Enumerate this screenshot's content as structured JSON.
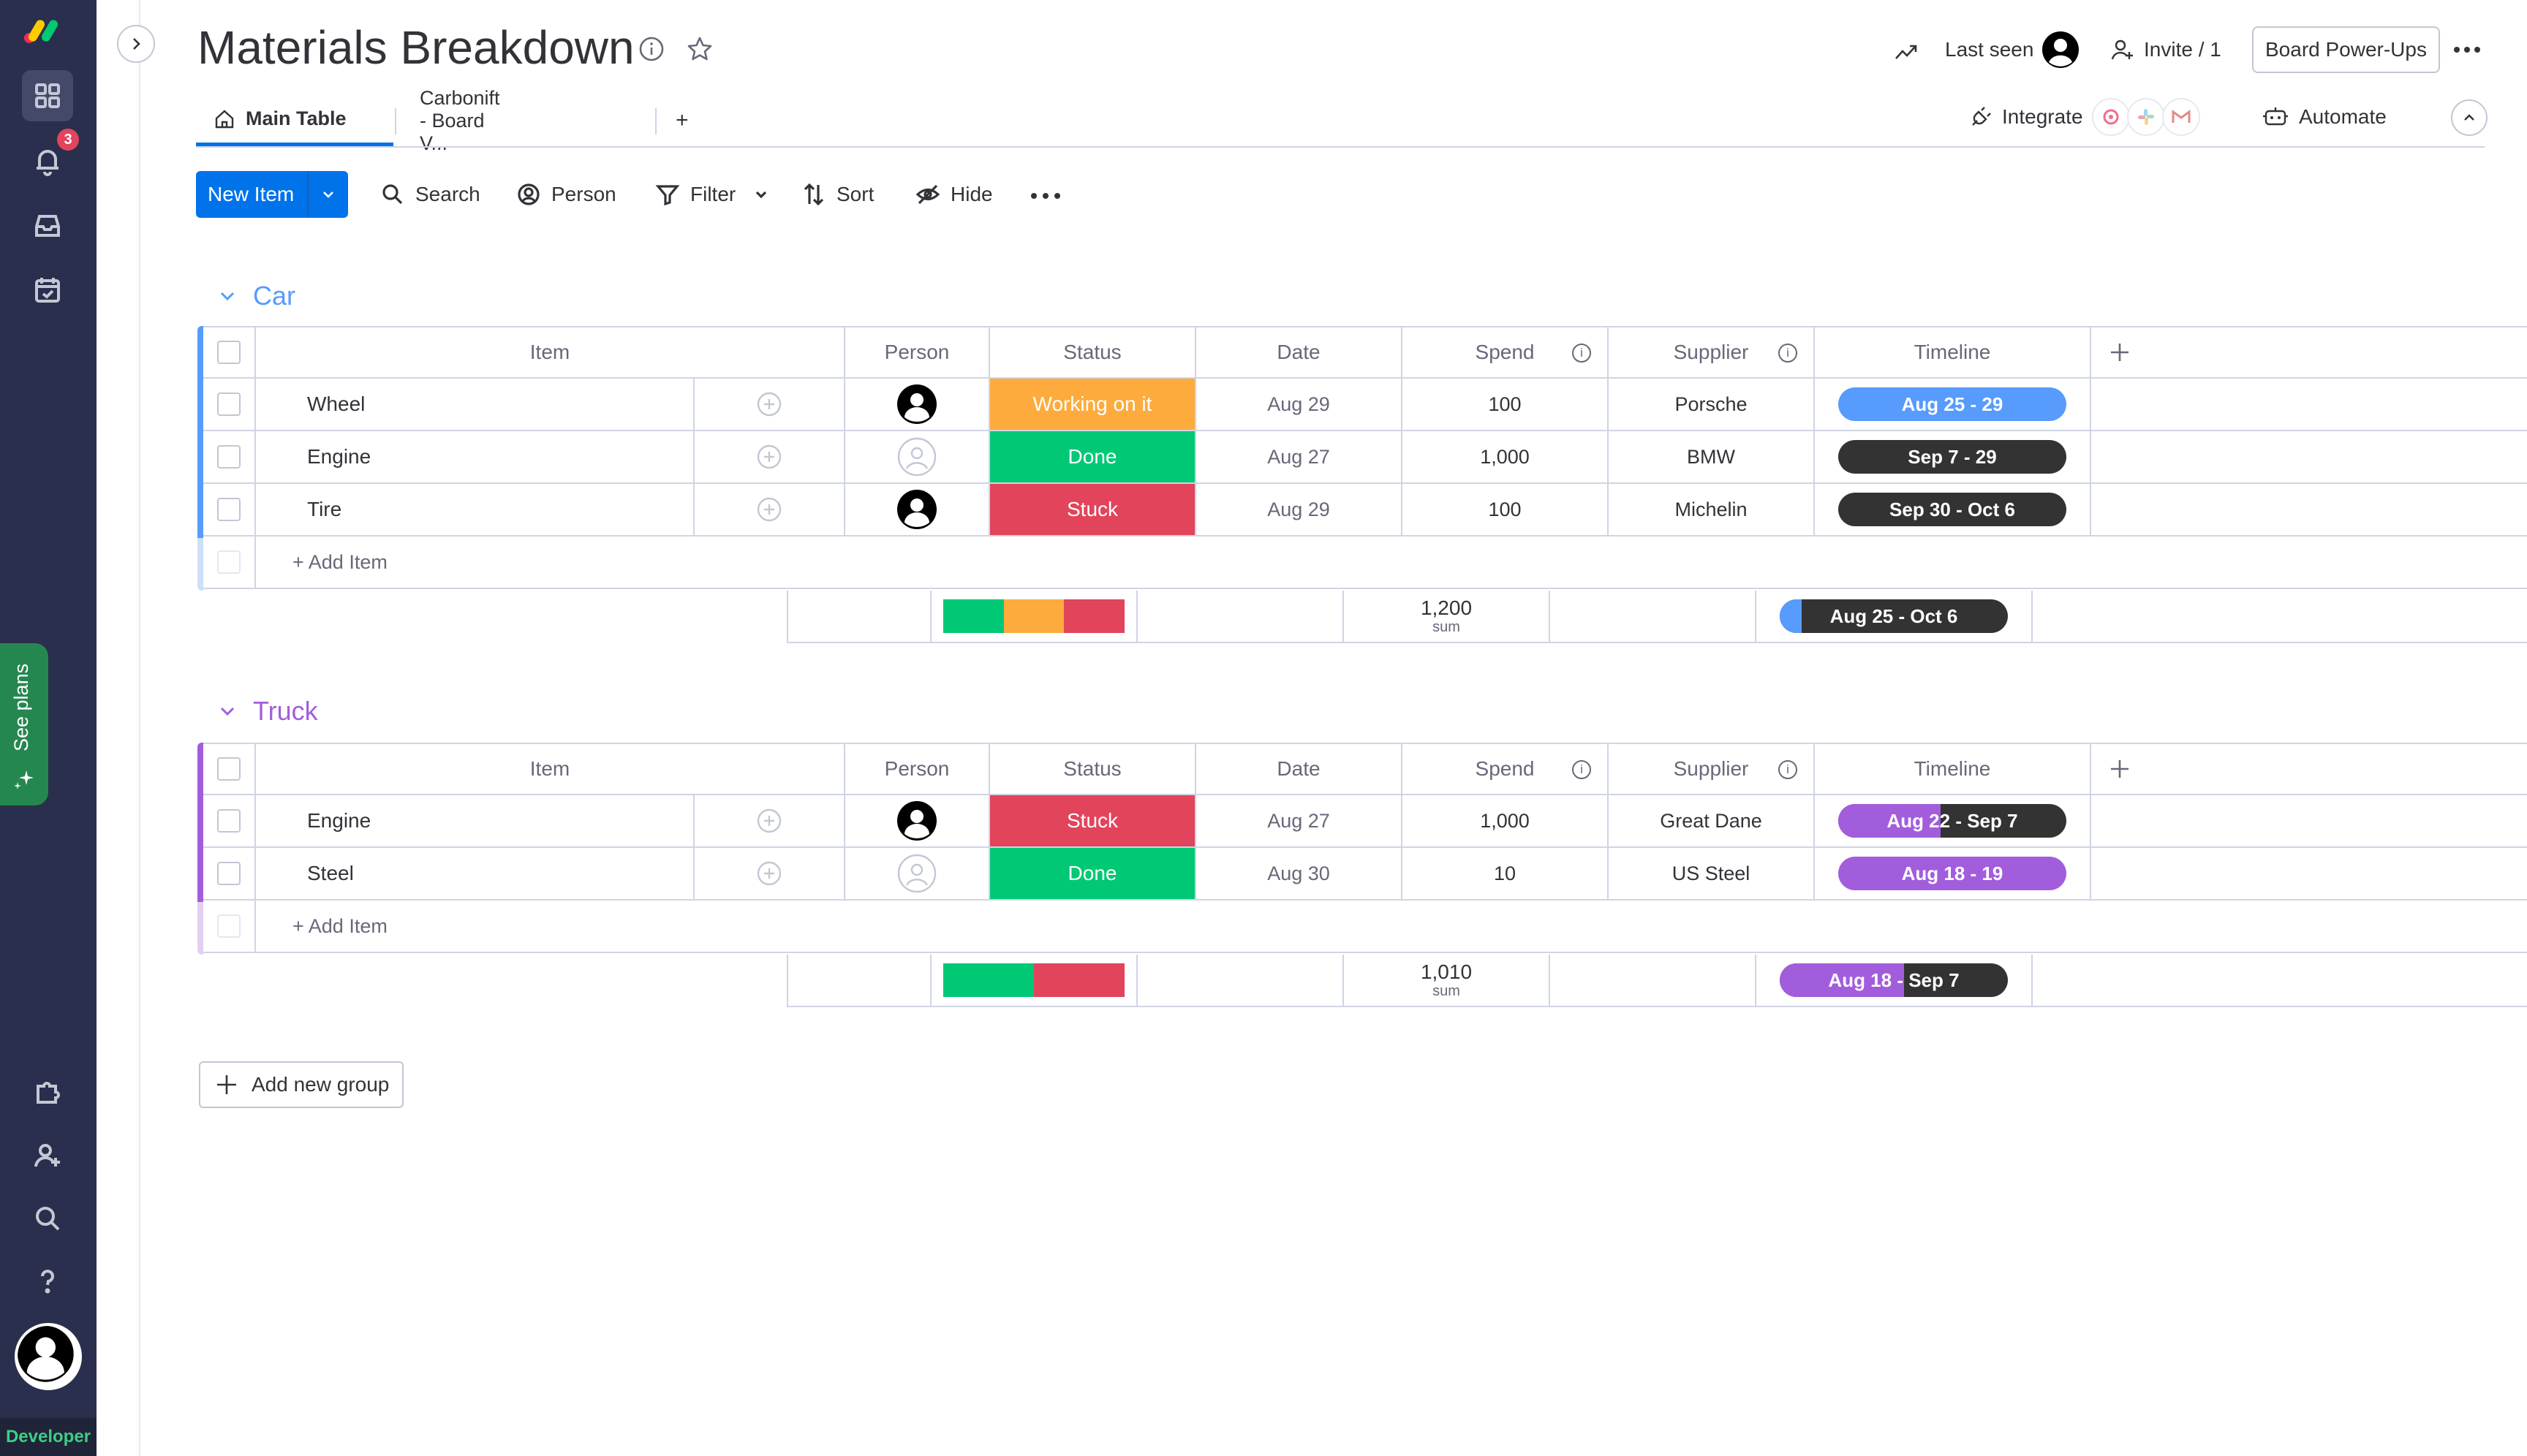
{
  "board": {
    "title": "Materials Breakdown",
    "last_seen_label": "Last seen",
    "invite_label": "Invite / 1",
    "power_ups_label": "Board Power-Ups",
    "integrate_label": "Integrate",
    "automate_label": "Automate"
  },
  "tabs": [
    {
      "label": "Main Table"
    },
    {
      "label": "Carbonift - Board V..."
    },
    {
      "label": "+"
    }
  ],
  "toolbar": {
    "new_item": "New Item",
    "search": "Search",
    "person": "Person",
    "filter": "Filter",
    "sort": "Sort",
    "hide": "Hide"
  },
  "sidebar": {
    "notification_count": "3",
    "see_plans": "See plans",
    "developer": "Developer"
  },
  "columns": [
    "Item",
    "Person",
    "Status",
    "Date",
    "Spend",
    "Supplier",
    "Timeline"
  ],
  "colors": {
    "car_group": "#579bfc",
    "truck_group": "#a25ddc",
    "working": "#fdab3d",
    "done": "#00c875",
    "stuck": "#e2445c",
    "dark": "#333333"
  },
  "groups": [
    {
      "name": "Car",
      "rows": [
        {
          "item": "Wheel",
          "person": "filled",
          "status": "Working on it",
          "date": "Aug 29",
          "spend": "100",
          "supplier": "Porsche",
          "timeline": "Aug 25 - 29"
        },
        {
          "item": "Engine",
          "person": "empty",
          "status": "Done",
          "date": "Aug 27",
          "spend": "1,000",
          "supplier": "BMW",
          "timeline": "Sep 7 - 29"
        },
        {
          "item": "Tire",
          "person": "filled",
          "status": "Stuck",
          "date": "Aug 29",
          "spend": "100",
          "supplier": "Michelin",
          "timeline": "Sep 30 - Oct 6"
        }
      ],
      "add_item": "+ Add Item",
      "sum_value": "1,200",
      "sum_label": "sum",
      "summary_timeline": "Aug 25 - Oct 6"
    },
    {
      "name": "Truck",
      "rows": [
        {
          "item": "Engine",
          "person": "filled",
          "status": "Stuck",
          "date": "Aug 27",
          "spend": "1,000",
          "supplier": "Great Dane",
          "timeline": "Aug 22 - Sep 7"
        },
        {
          "item": "Steel",
          "person": "empty",
          "status": "Done",
          "date": "Aug 30",
          "spend": "10",
          "supplier": "US Steel",
          "timeline": "Aug 18 - 19"
        }
      ],
      "add_item": "+ Add Item",
      "sum_value": "1,010",
      "sum_label": "sum",
      "summary_timeline": "Aug 18 - Sep 7"
    }
  ],
  "add_new_group": "Add new group"
}
